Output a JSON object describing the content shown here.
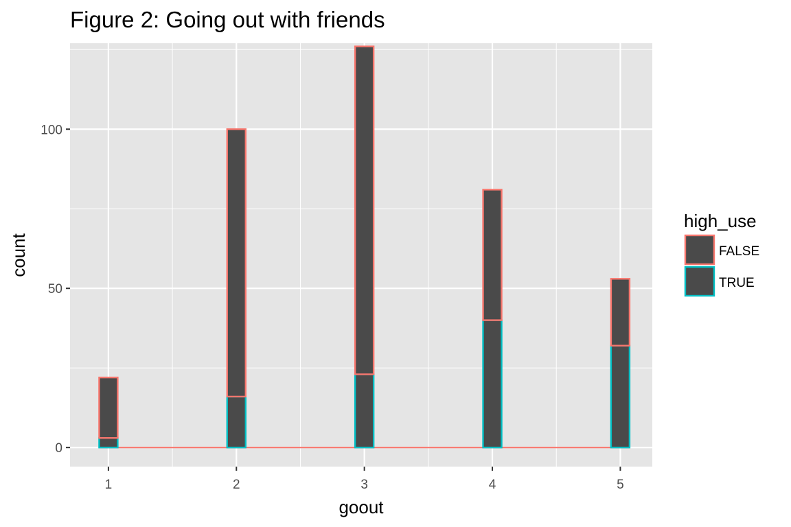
{
  "chart_data": {
    "type": "bar",
    "title": "Figure 2: Going out with friends",
    "xlabel": "goout",
    "ylabel": "count",
    "x_ticks": [
      "1",
      "2",
      "3",
      "4",
      "5"
    ],
    "y_ticks": [
      "0",
      "50",
      "100"
    ],
    "x": [
      1,
      2,
      3,
      4,
      5
    ],
    "xlim": [
      0.7,
      5.25
    ],
    "ylim": [
      -6,
      127
    ],
    "stacked": true,
    "grid": true,
    "legend": {
      "title": "high_use",
      "position": "right"
    },
    "series": [
      {
        "name": "FALSE",
        "values": [
          19,
          84,
          103,
          41,
          21
        ],
        "color": "#F8766D"
      },
      {
        "name": "TRUE",
        "values": [
          3,
          16,
          23,
          40,
          32
        ],
        "color": "#00BFC4"
      }
    ],
    "totals": [
      22,
      100,
      126,
      81,
      53
    ],
    "bar_fill": "#4a4a4a",
    "panel_background": "#e5e5e5",
    "grid_color": "#ffffff"
  }
}
